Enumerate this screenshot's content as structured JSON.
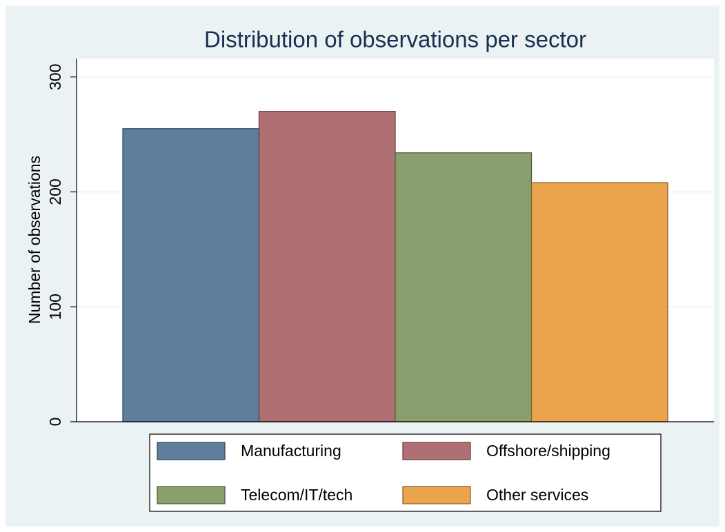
{
  "chart_data": {
    "type": "bar",
    "title": "Distribution of observations per sector",
    "y_label": "Number of observations",
    "series": [
      {
        "name": "Manufacturing",
        "color": "#5f7e9b",
        "values": [
          255
        ]
      },
      {
        "name": "Offshore/shipping",
        "color": "#b07073",
        "values": [
          270
        ]
      },
      {
        "name": "Telecom/IT/tech",
        "color": "#899f6d",
        "values": [
          234
        ]
      },
      {
        "name": "Other services",
        "color": "#eaa44c",
        "values": [
          208
        ]
      }
    ],
    "ylim": [
      0,
      316
    ],
    "yticks": [
      0,
      100,
      200,
      300
    ],
    "grid": true,
    "legend": "bottom"
  }
}
